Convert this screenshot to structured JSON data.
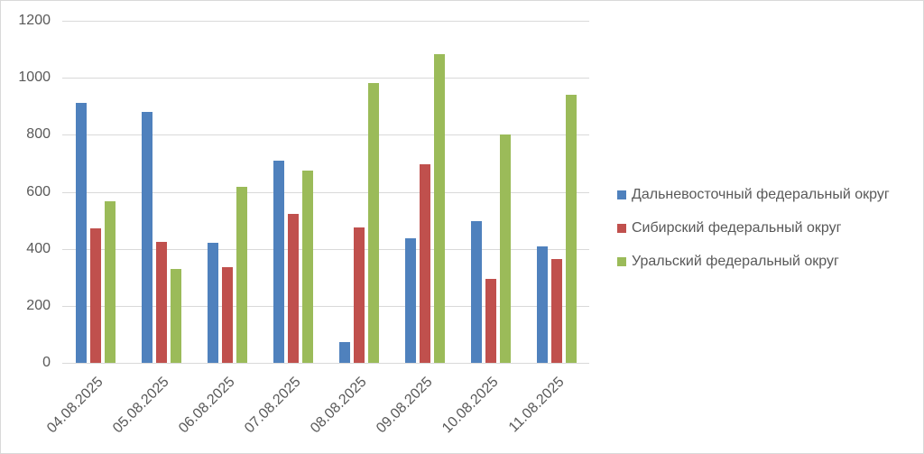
{
  "chart_data": {
    "type": "bar",
    "title": "",
    "xlabel": "",
    "ylabel": "",
    "ylim": [
      0,
      1200
    ],
    "yticks": [
      0,
      200,
      400,
      600,
      800,
      1000,
      1200
    ],
    "grid": true,
    "legend_position": "right",
    "categories": [
      "04.08.2025",
      "05.08.2025",
      "06.08.2025",
      "07.08.2025",
      "08.08.2025",
      "09.08.2025",
      "10.08.2025",
      "11.08.2025"
    ],
    "series": [
      {
        "name": "Дальневосточный федеральный округ",
        "color": "#4f81bd",
        "values": [
          911,
          881,
          420,
          708,
          74,
          436,
          498,
          409
        ]
      },
      {
        "name": "Сибирский федеральный округ",
        "color": "#c0504d",
        "values": [
          472,
          423,
          335,
          521,
          474,
          696,
          295,
          363
        ]
      },
      {
        "name": "Уральский федеральный округ",
        "color": "#9bbb59",
        "values": [
          566,
          329,
          616,
          673,
          982,
          1083,
          800,
          940
        ]
      }
    ]
  }
}
